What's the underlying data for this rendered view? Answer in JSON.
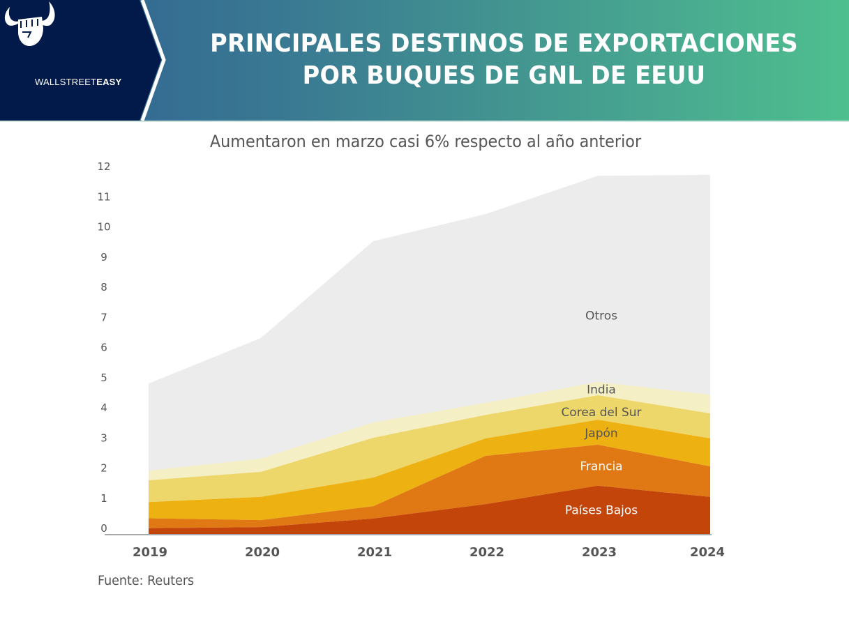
{
  "header": {
    "brand": {
      "name_light": "WALLSTREET",
      "name_bold": "EASY",
      "logo_icon": "bull-horns-fist-icon"
    },
    "title_line1": "PRINCIPALES DESTINOS DE EXPORTACIONES",
    "title_line2": "POR BUQUES DE GNL DE EEUU"
  },
  "colors": {
    "header_dark": "#021a4a",
    "header_gradient_start": "#2f5f92",
    "header_gradient_end": "#4fbf8f"
  },
  "source": "Fuente: Reuters",
  "chart_data": {
    "type": "area",
    "stacked": true,
    "title": "Aumentaron en marzo casi 6% respecto al año anterior",
    "xlabel": "",
    "ylabel": "",
    "categories": [
      "2019",
      "2020",
      "2021",
      "2022",
      "2023",
      "2024"
    ],
    "ylim": [
      0,
      12
    ],
    "yticks": [
      "0",
      "1",
      "2",
      "3",
      "4",
      "5",
      "6",
      "7",
      "8",
      "9",
      "10",
      "11",
      "12"
    ],
    "grid": false,
    "legend": "inline labels at 2023",
    "series": [
      {
        "name": "Países Bajos",
        "color": "#c4450a",
        "label_color": "#ffffff",
        "values": [
          0.19,
          0.23,
          0.51,
          0.99,
          1.6,
          1.23
        ]
      },
      {
        "name": "Francia",
        "color": "#e07814",
        "label_color": "#ffffff",
        "values": [
          0.33,
          0.23,
          0.41,
          1.6,
          1.36,
          1.01
        ]
      },
      {
        "name": "Japón",
        "color": "#edb112",
        "label_color": "#555555",
        "values": [
          0.54,
          0.77,
          0.95,
          0.58,
          0.83,
          0.93
        ]
      },
      {
        "name": "Corea del Sur",
        "color": "#eed76a",
        "label_color": "#555555",
        "values": [
          0.72,
          0.83,
          1.32,
          0.78,
          0.81,
          0.83
        ]
      },
      {
        "name": "India",
        "color": "#f5efc6",
        "label_color": "#555555",
        "values": [
          0.32,
          0.44,
          0.51,
          0.4,
          0.44,
          0.62
        ]
      },
      {
        "name": "Otros",
        "color": "#ececec",
        "label_color": "#555555",
        "values": [
          2.89,
          4.0,
          6.01,
          6.26,
          6.84,
          7.29
        ]
      }
    ],
    "series_label_positions": [
      {
        "name": "Países Bajos",
        "x_category": "2023",
        "y": 0.8
      },
      {
        "name": "Francia",
        "x_category": "2023",
        "y": 2.25
      },
      {
        "name": "Japón",
        "x_category": "2023",
        "y": 3.35
      },
      {
        "name": "Corea del Sur",
        "x_category": "2023",
        "y": 4.05
      },
      {
        "name": "India",
        "x_category": "2023",
        "y": 4.8
      },
      {
        "name": "Otros",
        "x_category": "2023",
        "y": 7.25
      }
    ]
  }
}
